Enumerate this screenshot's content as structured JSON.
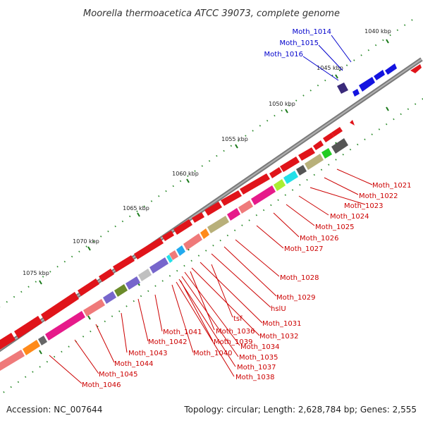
{
  "title": "Moorella thermoacetica ATCC 39073, complete genome",
  "footer": {
    "accession": "Accession: NC_007644",
    "summary": "Topology: circular; Length: 2,628,784 bp; Genes: 2,555"
  },
  "colors": {
    "forward_label": "#0000cc",
    "reverse_label": "#cc0000",
    "backbone": "#888888",
    "tick": "#1a7a1a"
  },
  "ticks": [
    "1040 kbp",
    "1045 kbp",
    "1050 kbp",
    "1055 kbp",
    "1060 kbp",
    "1065 kbp",
    "1070 kbp",
    "1075 kbp"
  ],
  "forward_labels": [
    "Moth_1014",
    "Moth_1015",
    "Moth_1016"
  ],
  "reverse_labels": [
    "Moth_1021",
    "Moth_1022",
    "Moth_1023",
    "Moth_1024",
    "Moth_1025",
    "Moth_1026",
    "Moth_1027",
    "Moth_1028",
    "Moth_1029",
    "hslU",
    "Moth_1031",
    "Moth_1032",
    "Moth_1034",
    "Moth_1035",
    "Moth_1037",
    "Moth_1038",
    "tsf",
    "Moth_1036",
    "Moth_1039",
    "Moth_1040",
    "Moth_1041",
    "Moth_1042",
    "Moth_1043",
    "Moth_1044",
    "Moth_1045",
    "Moth_1046"
  ]
}
